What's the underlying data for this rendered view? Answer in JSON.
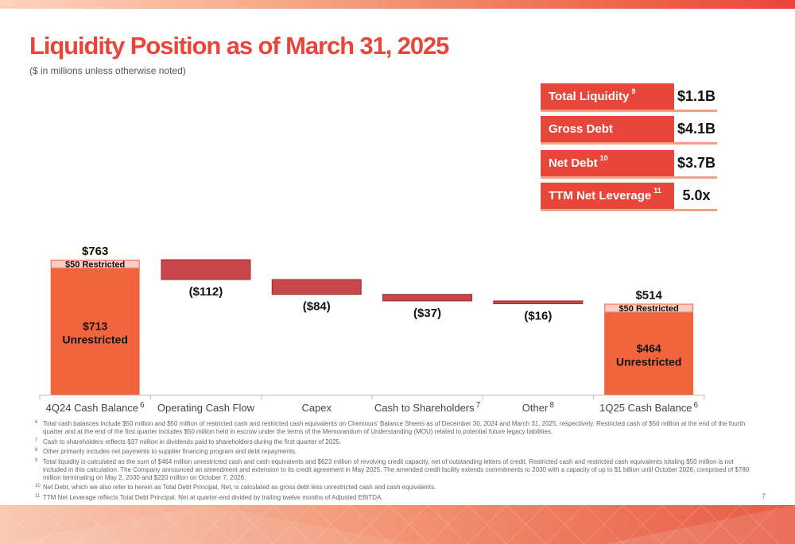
{
  "header": {
    "title": "Liquidity Position as of March 31, 2025",
    "subtitle": "($ in millions unless otherwise noted)"
  },
  "metrics": [
    {
      "label": "Total Liquidity",
      "sup": "9",
      "value": "$1.1B"
    },
    {
      "label": "Gross Debt",
      "sup": "",
      "value": "$4.1B"
    },
    {
      "label": "Net Debt",
      "sup": "10",
      "value": "$3.7B"
    },
    {
      "label": "TTM Net Leverage",
      "sup": "11",
      "value": "5.0x"
    }
  ],
  "chart_data": {
    "type": "bar",
    "subtype": "waterfall",
    "categories": [
      {
        "label": "4Q24 Cash Balance",
        "sup": "6"
      },
      {
        "label": "Operating Cash Flow",
        "sup": ""
      },
      {
        "label": "Capex",
        "sup": ""
      },
      {
        "label": "Cash to Shareholders",
        "sup": "7"
      },
      {
        "label": "Other",
        "sup": "8"
      },
      {
        "label": "1Q25 Cash Balance",
        "sup": "6"
      }
    ],
    "values": [
      763,
      -112,
      -84,
      -37,
      -16,
      514
    ],
    "totals": [
      {
        "index": 0,
        "total": 763,
        "total_label": "$763",
        "restricted": 50,
        "restricted_label": "$50 Restricted",
        "unrestricted": 713,
        "unrestricted_label": [
          "$713",
          "Unrestricted"
        ]
      },
      {
        "index": 5,
        "total": 514,
        "total_label": "$514",
        "restricted": 50,
        "restricted_label": "$50 Restricted",
        "unrestricted": 464,
        "unrestricted_label": [
          "$464",
          "Unrestricted"
        ]
      }
    ],
    "change_labels": [
      "",
      "($112)",
      "($84)",
      "($37)",
      "($16)",
      ""
    ],
    "colors": {
      "unrestricted": "#f0653e",
      "restricted": "#f9cdc4",
      "decrease": "#c7474a",
      "border": "#9e2a2e",
      "axis": "#bfbfbf"
    }
  },
  "footnotes": [
    {
      "num": "6",
      "text": "Total cash balances include $50 million and $50 million of restricted cash and restricted cash equivalents on Chemours' Balance Sheets as of December 30, 2024 and March 31, 2025, respectively. Restricted cash of $50 million at the end of the fourth quarter and at the end of the first quarter includes $50 million held in escrow under the terms of the Memorandum of Understanding (MOU) related to potential future legacy liabilities."
    },
    {
      "num": "7",
      "text": "Cash to shareholders reflects $37 million in dividends paid to shareholders during the first quarter of 2025."
    },
    {
      "num": "8",
      "text": "Other primarily includes net payments to supplier financing program and debt repayments."
    },
    {
      "num": "9",
      "text": "Total liquidity is calculated as the sum of $464 million unrestricted cash and cash equivalents and $623 million of revolving credit capacity, net of outstanding letters of credit. Restricted cash and restricted cash equivalents totaling $50 million is not included in this calculation. The Company announced an amendment and extension to its credit agreement in May 2025. The amended credit facility extends commitments to 2030 with a capacity of up to $1 billion until October 2026, comprised of $780 million terminating on May 2, 2030 and $220 million on October 7, 2026."
    },
    {
      "num": "10",
      "text": "Net Debt, which we also refer to herein as Total Debt Principal, Net, is calculated as gross debt less unrestricted cash and cash equivalents."
    },
    {
      "num": "11",
      "text": "TTM Net Leverage reflects Total Debt Principal, Net at quarter-end divided by trailing twelve months of Adjusted EBITDA."
    }
  ],
  "page_number": "7"
}
